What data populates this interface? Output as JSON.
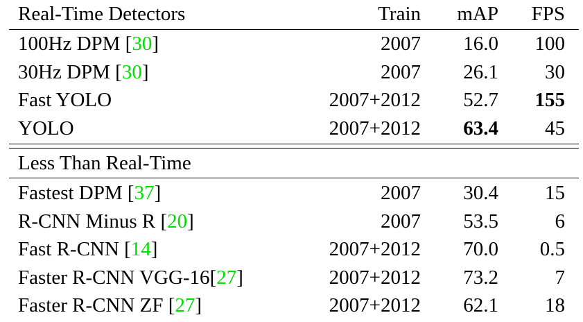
{
  "headers": {
    "group": "Real-Time Detectors",
    "train": "Train",
    "map": "mAP",
    "fps": "FPS"
  },
  "section2_title": "Less Than Real-Time",
  "realtime_rows": [
    {
      "name": "100Hz DPM ",
      "cite": "30",
      "suffix": "]",
      "train": "2007",
      "map": "16.0",
      "fps": "100"
    },
    {
      "name": "30Hz DPM ",
      "cite": "30",
      "suffix": "]",
      "train": "2007",
      "map": "26.1",
      "fps": "30"
    },
    {
      "name": "Fast YOLO",
      "cite": "",
      "suffix": "",
      "train": "2007+2012",
      "map": "52.7",
      "fps": "155"
    },
    {
      "name": "YOLO",
      "cite": "",
      "suffix": "",
      "train": "2007+2012",
      "map": "63.4",
      "fps": "45"
    }
  ],
  "slow_rows": [
    {
      "name": "Fastest DPM ",
      "cite": "37",
      "suffix": "]",
      "train": "2007",
      "map": "30.4",
      "fps": "15"
    },
    {
      "name": "R-CNN Minus R ",
      "cite": "20",
      "suffix": "]",
      "train": "2007",
      "map": "53.5",
      "fps": "6"
    },
    {
      "name": "Fast R-CNN ",
      "cite": "14",
      "suffix": "]",
      "train": "2007+2012",
      "map": "70.0",
      "fps": "0.5"
    },
    {
      "name": "Faster R-CNN VGG-16",
      "cite": "27",
      "suffix": "]",
      "train": "2007+2012",
      "map": "73.2",
      "fps": "7"
    },
    {
      "name": "Faster R-CNN ZF ",
      "cite": "27",
      "suffix": "]",
      "train": "2007+2012",
      "map": "62.1",
      "fps": "18"
    }
  ],
  "cite_color": "#00dd00"
}
